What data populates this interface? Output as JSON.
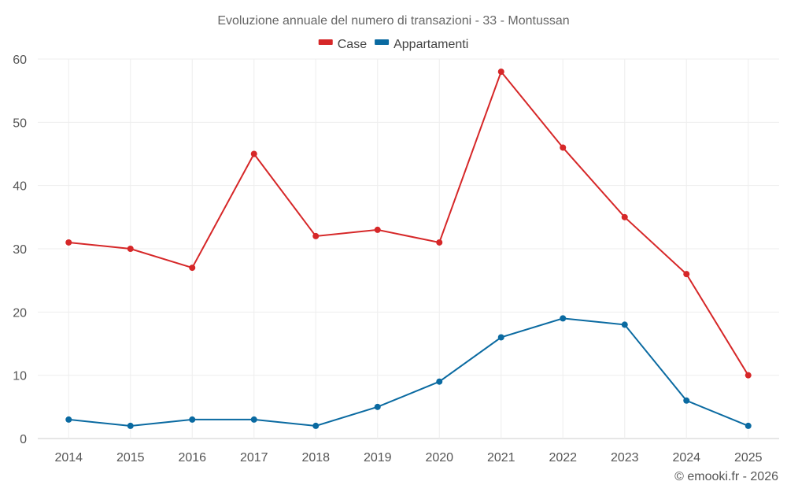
{
  "chart_data": {
    "type": "line",
    "title": "Evoluzione annuale del numero di transazioni - 33 - Montussan",
    "categories": [
      "2014",
      "2015",
      "2016",
      "2017",
      "2018",
      "2019",
      "2020",
      "2021",
      "2022",
      "2023",
      "2024",
      "2025"
    ],
    "series": [
      {
        "name": "Case",
        "color": "#d62728",
        "values": [
          31,
          30,
          27,
          45,
          32,
          33,
          31,
          58,
          46,
          35,
          26,
          10
        ]
      },
      {
        "name": "Appartamenti",
        "color": "#0a6aa1",
        "values": [
          3,
          2,
          3,
          3,
          2,
          5,
          9,
          16,
          19,
          18,
          6,
          2
        ]
      }
    ],
    "ylim": [
      0,
      60
    ],
    "yticks": [
      0,
      10,
      20,
      30,
      40,
      50,
      60
    ],
    "xlabel": "",
    "ylabel": "",
    "grid": true,
    "legend": "top-center",
    "credit": "© emooki.fr - 2026"
  }
}
